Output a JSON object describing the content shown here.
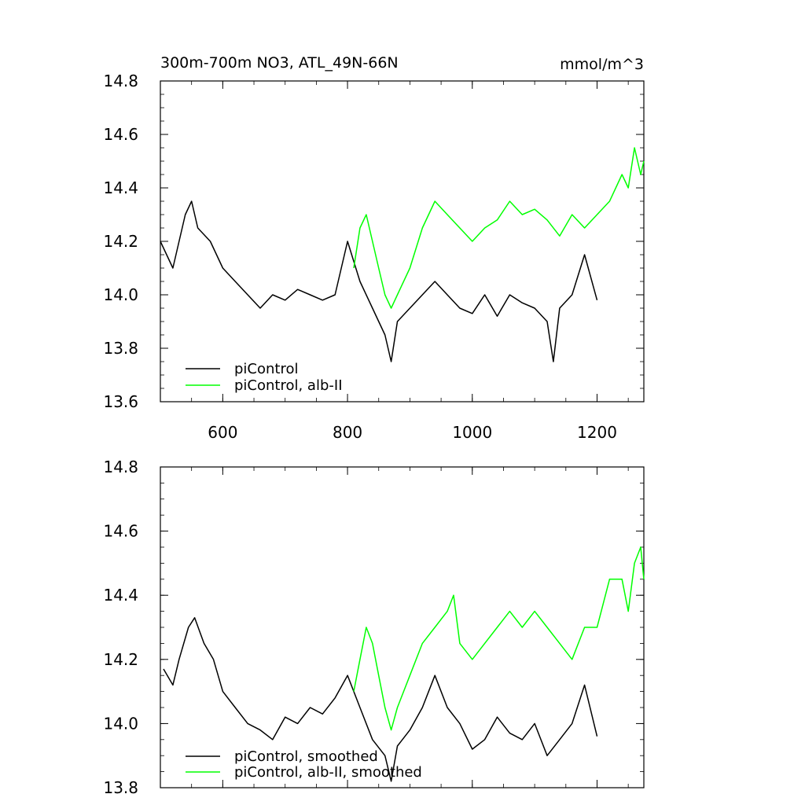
{
  "chart_data": [
    {
      "type": "line",
      "title": "300m-700m NO3, ATL_49N-66N",
      "units": "mmol/m^3",
      "xlim": [
        500,
        1275
      ],
      "ylim": [
        13.6,
        14.8
      ],
      "x_ticks": [
        600,
        800,
        1000,
        1200
      ],
      "y_ticks": [
        13.6,
        13.8,
        14.0,
        14.2,
        14.4,
        14.6,
        14.8
      ],
      "grid": false,
      "legend_position": "bottom-left",
      "series": [
        {
          "name": "piControl",
          "color": "#000000",
          "x": [
            500,
            520,
            540,
            550,
            560,
            580,
            600,
            620,
            640,
            660,
            680,
            700,
            720,
            740,
            760,
            780,
            800,
            820,
            840,
            860,
            870,
            880,
            900,
            920,
            940,
            960,
            980,
            1000,
            1020,
            1040,
            1060,
            1080,
            1100,
            1120,
            1130,
            1140,
            1160,
            1180,
            1200
          ],
          "values": [
            14.2,
            14.1,
            14.3,
            14.35,
            14.25,
            14.2,
            14.1,
            14.05,
            14.0,
            13.95,
            14.0,
            13.98,
            14.02,
            14.0,
            13.98,
            14.0,
            14.2,
            14.05,
            13.95,
            13.85,
            13.75,
            13.9,
            13.95,
            14.0,
            14.05,
            14.0,
            13.95,
            13.93,
            14.0,
            13.92,
            14.0,
            13.97,
            13.95,
            13.9,
            13.75,
            13.95,
            14.0,
            14.15,
            13.98
          ]
        },
        {
          "name": "piControl, alb-II",
          "color": "#00ff00",
          "x": [
            810,
            820,
            830,
            840,
            850,
            860,
            870,
            880,
            900,
            920,
            940,
            960,
            980,
            1000,
            1020,
            1040,
            1060,
            1080,
            1100,
            1120,
            1140,
            1160,
            1180,
            1200,
            1220,
            1240,
            1250,
            1260,
            1270,
            1275
          ],
          "values": [
            14.1,
            14.25,
            14.3,
            14.2,
            14.1,
            14.0,
            13.95,
            14.0,
            14.1,
            14.25,
            14.35,
            14.3,
            14.25,
            14.2,
            14.25,
            14.28,
            14.35,
            14.3,
            14.32,
            14.28,
            14.22,
            14.3,
            14.25,
            14.3,
            14.35,
            14.45,
            14.4,
            14.55,
            14.45,
            14.5
          ]
        }
      ]
    },
    {
      "type": "line",
      "title": "",
      "xlim": [
        500,
        1275
      ],
      "ylim": [
        13.8,
        14.8
      ],
      "y_ticks": [
        13.8,
        14.0,
        14.2,
        14.4,
        14.6,
        14.8
      ],
      "grid": false,
      "legend_position": "bottom-left",
      "series": [
        {
          "name": "piControl, smoothed",
          "color": "#000000",
          "x": [
            505,
            520,
            530,
            545,
            555,
            570,
            585,
            600,
            620,
            640,
            660,
            680,
            700,
            720,
            740,
            760,
            780,
            800,
            820,
            840,
            860,
            870,
            880,
            900,
            920,
            940,
            960,
            980,
            1000,
            1020,
            1040,
            1060,
            1080,
            1100,
            1120,
            1140,
            1160,
            1180,
            1200
          ],
          "values": [
            14.17,
            14.12,
            14.2,
            14.3,
            14.33,
            14.25,
            14.2,
            14.1,
            14.05,
            14.0,
            13.98,
            13.95,
            14.02,
            14.0,
            14.05,
            14.03,
            14.08,
            14.15,
            14.05,
            13.95,
            13.9,
            13.82,
            13.93,
            13.98,
            14.05,
            14.15,
            14.05,
            14.0,
            13.92,
            13.95,
            14.02,
            13.97,
            13.95,
            14.0,
            13.9,
            13.95,
            14.0,
            14.12,
            13.96
          ]
        },
        {
          "name": "piControl, alb-II, smoothed",
          "color": "#00ff00",
          "x": [
            810,
            820,
            830,
            840,
            850,
            860,
            870,
            880,
            900,
            920,
            940,
            960,
            970,
            980,
            1000,
            1020,
            1040,
            1060,
            1080,
            1100,
            1120,
            1140,
            1160,
            1180,
            1200,
            1220,
            1240,
            1250,
            1260,
            1270,
            1275
          ],
          "values": [
            14.1,
            14.2,
            14.3,
            14.25,
            14.15,
            14.05,
            13.98,
            14.05,
            14.15,
            14.25,
            14.3,
            14.35,
            14.4,
            14.25,
            14.2,
            14.25,
            14.3,
            14.35,
            14.3,
            14.35,
            14.3,
            14.25,
            14.2,
            14.3,
            14.3,
            14.45,
            14.45,
            14.35,
            14.5,
            14.55,
            14.45
          ]
        }
      ]
    }
  ]
}
